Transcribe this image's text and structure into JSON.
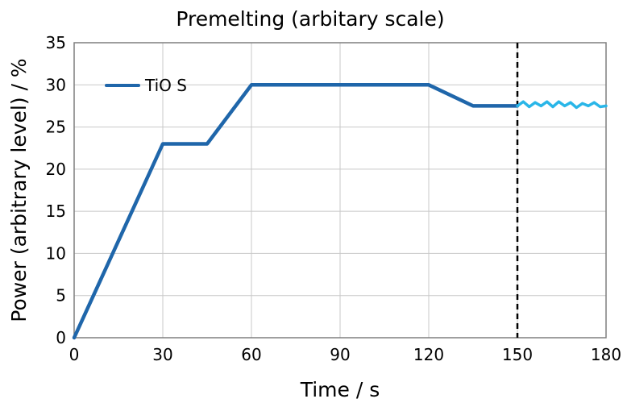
{
  "chart_data": {
    "type": "line",
    "title": "Premelting (arbitary scale)",
    "xlabel": "Time / s",
    "ylabel": "Power (arbitrary level) / %",
    "xlim": [
      0,
      180
    ],
    "ylim": [
      0,
      35
    ],
    "x_ticks": [
      "0",
      "30",
      "60",
      "90",
      "120",
      "150",
      "180"
    ],
    "y_ticks": [
      "0",
      "5",
      "10",
      "15",
      "20",
      "25",
      "30",
      "35"
    ],
    "grid": true,
    "legend_position": "top-left",
    "series": [
      {
        "name": "TiO S",
        "color": "#1f66aa",
        "x": [
          0,
          30,
          45,
          60,
          120,
          135,
          150
        ],
        "y": [
          0,
          23,
          23,
          30,
          30,
          27.5,
          27.5
        ]
      },
      {
        "color": "#29b6e8",
        "x": [
          150,
          152,
          154,
          156,
          158,
          160,
          162,
          164,
          166,
          168,
          170,
          172,
          174,
          176,
          178,
          180
        ],
        "y": [
          27.5,
          28.0,
          27.4,
          27.9,
          27.5,
          28.0,
          27.4,
          28.0,
          27.5,
          27.9,
          27.3,
          27.8,
          27.5,
          27.9,
          27.4,
          27.5
        ]
      }
    ],
    "vertical_marker_x": 150
  }
}
